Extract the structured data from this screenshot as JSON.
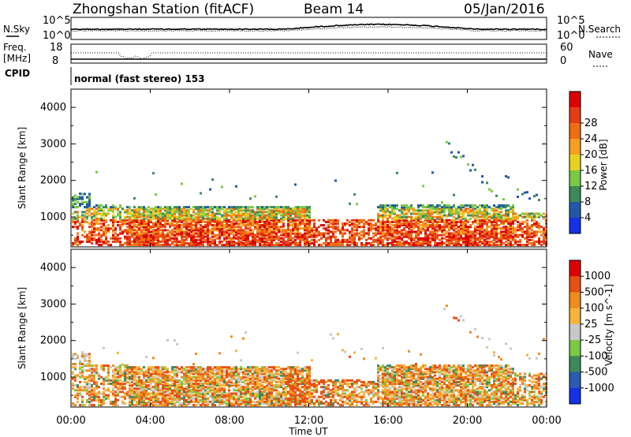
{
  "header": {
    "station": "Zhongshan Station (fitACF)",
    "beam": "Beam 14",
    "date": "05/Jan/2016"
  },
  "noise_panel": {
    "left_label": "N.Sky",
    "right_label": "N.Search",
    "left_ticks": [
      "10^5",
      "10^0"
    ],
    "right_ticks": [
      "10^5",
      "10^0"
    ]
  },
  "freq_panel": {
    "left_label_1": "Freq.",
    "left_label_2": "[MHz]",
    "right_label": "Nave",
    "left_ticks": [
      "18",
      "8"
    ],
    "right_ticks": [
      "60",
      "0"
    ]
  },
  "cpid": {
    "label": "CPID",
    "text": "normal (fast stereo) 153"
  },
  "chart_data": [
    {
      "type": "heatmap",
      "title": "",
      "xlabel": "Time UT",
      "ylabel": "Slant Range [km]",
      "x_ticks": [
        "00:00",
        "04:00",
        "08:00",
        "12:00",
        "16:00",
        "20:00",
        "00:00"
      ],
      "y_ticks": [
        "1000",
        "2000",
        "3000",
        "4000"
      ],
      "ylim": [
        180,
        4500
      ],
      "colorbar_label": "Power [dB]",
      "colorbar_ticks": [
        "4",
        "8",
        "12",
        "16",
        "20",
        "24",
        "28"
      ],
      "colorbar_colors": [
        "#1432e6",
        "#2358a8",
        "#3c8a5a",
        "#7ac944",
        "#e6d21e",
        "#f5a01e",
        "#ee6e14",
        "#e63c14",
        "#dc0000"
      ],
      "colors": [
        "#1432e6",
        "#2358a8",
        "#3c8a5a",
        "#7ac944",
        "#e6d21e",
        "#f5a01e",
        "#ee6e14",
        "#e63c14",
        "#dc0000"
      ]
    },
    {
      "type": "heatmap",
      "title": "",
      "xlabel": "Time UT",
      "ylabel": "Slant Range [km]",
      "x_ticks": [
        "00:00",
        "04:00",
        "08:00",
        "12:00",
        "16:00",
        "20:00",
        "00:00"
      ],
      "y_ticks": [
        "1000",
        "2000",
        "3000",
        "4000"
      ],
      "ylim": [
        180,
        4500
      ],
      "colorbar_label": "Velocity [m s^-1]",
      "colorbar_ticks": [
        "1000",
        "500",
        "100",
        "25",
        "-25",
        "-100",
        "-500",
        "-1000"
      ],
      "colorbar_colors": [
        "#1432e6",
        "#2a5cb0",
        "#3c8a5a",
        "#7ac944",
        "#c8c8c8",
        "#f5b43c",
        "#ee8c1e",
        "#e65014",
        "#dc0000"
      ],
      "colors": [
        "#1432e6",
        "#2a5cb0",
        "#3c8a5a",
        "#7ac944",
        "#c8c8c8",
        "#f5b43c",
        "#ee8c1e",
        "#e65014",
        "#dc0000"
      ]
    }
  ]
}
